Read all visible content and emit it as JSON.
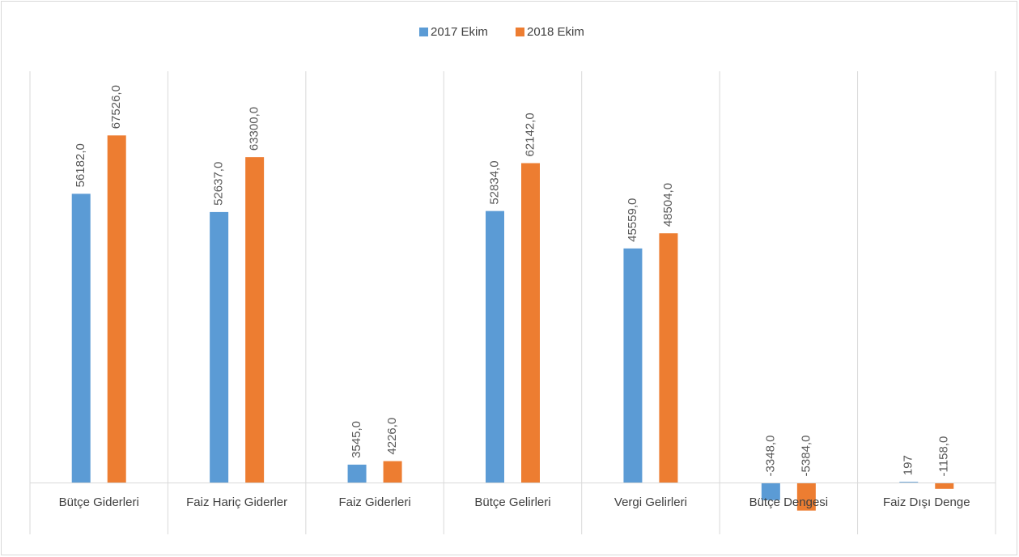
{
  "chart_data": {
    "type": "bar",
    "categories": [
      "Bütçe Giderleri",
      "Faiz Hariç Giderler",
      "Faiz Giderleri",
      "Bütçe Gelirleri",
      "Vergi Gelirleri",
      "Bütçe Dengesi",
      "Faiz Dışı Denge"
    ],
    "series": [
      {
        "name": "2017 Ekim",
        "color": "#5b9bd5",
        "values": [
          56182,
          52637,
          3545,
          52834,
          45559,
          -3348,
          197
        ],
        "value_labels": [
          "56182,0",
          "52637,0",
          "3545,0",
          "52834,0",
          "45559,0",
          "-3348,0",
          "197"
        ]
      },
      {
        "name": "2018 Ekim",
        "color": "#ed7d31",
        "values": [
          67526,
          63300,
          4226,
          62142,
          48504,
          -5384,
          -1158
        ],
        "value_labels": [
          "67526,0",
          "63300,0",
          "4226,0",
          "62142,0",
          "48504,0",
          "-5384,0",
          "-1158,0"
        ]
      }
    ],
    "ylim": [
      -10000,
      80000
    ],
    "legend": "top"
  }
}
